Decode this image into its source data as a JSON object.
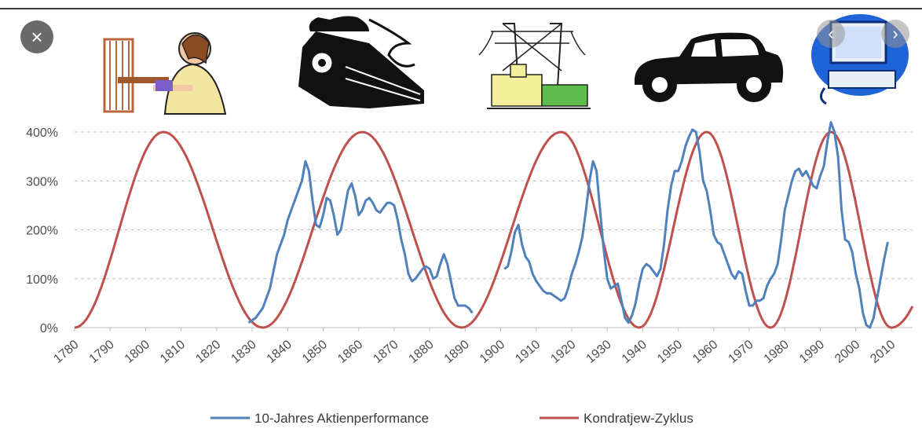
{
  "ui": {
    "close_icon": "×",
    "prev_icon": "‹",
    "next_icon": "›"
  },
  "era_icons": [
    "loom-weaver-icon",
    "steam-locomotive-icon",
    "power-plant-icon",
    "automobile-icon",
    "computer-icon"
  ],
  "colors": {
    "performance": "#4f81bd",
    "kondratiev": "#c0504d",
    "grid": "#bfbfbf"
  },
  "chart_data": {
    "type": "line",
    "title": "",
    "xlabel": "",
    "ylabel": "",
    "xlim": [
      1780,
      2016
    ],
    "ylim": [
      0,
      400
    ],
    "x_ticks": [
      "1780",
      "1790",
      "1800",
      "1810",
      "1820",
      "1830",
      "1840",
      "1850",
      "1860",
      "1870",
      "1880",
      "1890",
      "1900",
      "1910",
      "1920",
      "1930",
      "1940",
      "1950",
      "1960",
      "1970",
      "1980",
      "1990",
      "2000",
      "2010"
    ],
    "y_ticks": [
      "0%",
      "100%",
      "200%",
      "300%",
      "400%"
    ],
    "grid": "horizontal dashed",
    "legend_position": "bottom",
    "series": [
      {
        "name": "10-Jahres Aktienperformance",
        "points": [
          [
            1829,
            10
          ],
          [
            1831,
            20
          ],
          [
            1833,
            40
          ],
          [
            1835,
            80
          ],
          [
            1837,
            150
          ],
          [
            1839,
            190
          ],
          [
            1840,
            220
          ],
          [
            1842,
            260
          ],
          [
            1844,
            300
          ],
          [
            1845,
            340
          ],
          [
            1846,
            320
          ],
          [
            1847,
            260
          ],
          [
            1848,
            210
          ],
          [
            1849,
            205
          ],
          [
            1850,
            230
          ],
          [
            1851,
            265
          ],
          [
            1852,
            260
          ],
          [
            1853,
            230
          ],
          [
            1854,
            190
          ],
          [
            1855,
            200
          ],
          [
            1856,
            240
          ],
          [
            1857,
            280
          ],
          [
            1858,
            295
          ],
          [
            1859,
            270
          ],
          [
            1860,
            230
          ],
          [
            1861,
            240
          ],
          [
            1862,
            260
          ],
          [
            1863,
            265
          ],
          [
            1864,
            255
          ],
          [
            1865,
            240
          ],
          [
            1866,
            235
          ],
          [
            1867,
            245
          ],
          [
            1868,
            255
          ],
          [
            1869,
            255
          ],
          [
            1870,
            250
          ],
          [
            1871,
            220
          ],
          [
            1872,
            180
          ],
          [
            1873,
            150
          ],
          [
            1874,
            110
          ],
          [
            1875,
            95
          ],
          [
            1876,
            100
          ],
          [
            1877,
            110
          ],
          [
            1878,
            120
          ],
          [
            1879,
            125
          ],
          [
            1880,
            120
          ],
          [
            1881,
            100
          ],
          [
            1882,
            105
          ],
          [
            1883,
            130
          ],
          [
            1884,
            150
          ],
          [
            1885,
            130
          ],
          [
            1886,
            95
          ],
          [
            1887,
            60
          ],
          [
            1888,
            45
          ],
          [
            1889,
            45
          ],
          [
            1890,
            45
          ],
          [
            1891,
            40
          ],
          [
            1892,
            30
          ],
          [
            1901,
            120
          ],
          [
            1902,
            125
          ],
          [
            1903,
            155
          ],
          [
            1904,
            195
          ],
          [
            1905,
            210
          ],
          [
            1906,
            170
          ],
          [
            1907,
            145
          ],
          [
            1908,
            135
          ],
          [
            1909,
            110
          ],
          [
            1910,
            95
          ],
          [
            1911,
            85
          ],
          [
            1912,
            75
          ],
          [
            1913,
            70
          ],
          [
            1914,
            70
          ],
          [
            1915,
            65
          ],
          [
            1916,
            60
          ],
          [
            1917,
            55
          ],
          [
            1918,
            60
          ],
          [
            1919,
            80
          ],
          [
            1920,
            110
          ],
          [
            1921,
            130
          ],
          [
            1922,
            155
          ],
          [
            1923,
            185
          ],
          [
            1924,
            240
          ],
          [
            1925,
            300
          ],
          [
            1926,
            340
          ],
          [
            1927,
            320
          ],
          [
            1928,
            240
          ],
          [
            1929,
            160
          ],
          [
            1930,
            100
          ],
          [
            1931,
            80
          ],
          [
            1932,
            85
          ],
          [
            1933,
            90
          ],
          [
            1934,
            55
          ],
          [
            1935,
            20
          ],
          [
            1936,
            10
          ],
          [
            1937,
            25
          ],
          [
            1938,
            50
          ],
          [
            1939,
            90
          ],
          [
            1940,
            120
          ],
          [
            1941,
            130
          ],
          [
            1942,
            125
          ],
          [
            1943,
            115
          ],
          [
            1944,
            105
          ],
          [
            1945,
            120
          ],
          [
            1946,
            170
          ],
          [
            1947,
            240
          ],
          [
            1948,
            290
          ],
          [
            1949,
            320
          ],
          [
            1950,
            320
          ],
          [
            1951,
            340
          ],
          [
            1952,
            370
          ],
          [
            1953,
            390
          ],
          [
            1954,
            405
          ],
          [
            1955,
            400
          ],
          [
            1956,
            360
          ],
          [
            1957,
            300
          ],
          [
            1958,
            280
          ],
          [
            1959,
            240
          ],
          [
            1960,
            190
          ],
          [
            1961,
            175
          ],
          [
            1962,
            170
          ],
          [
            1963,
            150
          ],
          [
            1964,
            130
          ],
          [
            1965,
            110
          ],
          [
            1966,
            100
          ],
          [
            1967,
            115
          ],
          [
            1968,
            110
          ],
          [
            1969,
            75
          ],
          [
            1970,
            45
          ],
          [
            1971,
            45
          ],
          [
            1972,
            55
          ],
          [
            1973,
            55
          ],
          [
            1974,
            60
          ],
          [
            1975,
            85
          ],
          [
            1976,
            100
          ],
          [
            1977,
            110
          ],
          [
            1978,
            130
          ],
          [
            1979,
            180
          ],
          [
            1980,
            240
          ],
          [
            1981,
            270
          ],
          [
            1982,
            300
          ],
          [
            1983,
            320
          ],
          [
            1984,
            325
          ],
          [
            1985,
            310
          ],
          [
            1986,
            320
          ],
          [
            1987,
            305
          ],
          [
            1988,
            290
          ],
          [
            1989,
            285
          ],
          [
            1990,
            310
          ],
          [
            1991,
            330
          ],
          [
            1992,
            380
          ],
          [
            1993,
            420
          ],
          [
            1994,
            400
          ],
          [
            1995,
            350
          ],
          [
            1996,
            240
          ],
          [
            1997,
            180
          ],
          [
            1998,
            175
          ],
          [
            1999,
            155
          ],
          [
            2000,
            110
          ],
          [
            2001,
            80
          ],
          [
            2002,
            30
          ],
          [
            2003,
            5
          ],
          [
            2004,
            0
          ],
          [
            2005,
            20
          ],
          [
            2006,
            60
          ],
          [
            2007,
            100
          ],
          [
            2008,
            140
          ],
          [
            2009,
            175
          ]
        ]
      },
      {
        "name": "Kondratjew-Zyklus",
        "period": 56,
        "amplitude": 400,
        "peaks": [
          1805,
          1861,
          1917,
          1958,
          1993
        ],
        "troughs": [
          1780,
          1833,
          1889,
          1939,
          1976,
          2010
        ],
        "end": [
          2016,
          70
        ]
      }
    ]
  }
}
